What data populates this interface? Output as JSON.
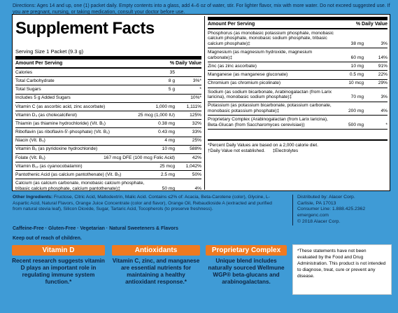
{
  "directions": "Directions: Ages 14 and up, one (1) packet daily. Empty contents into a glass, add 4–6 oz of water, stir. For lighter flavor, mix with more water. Do not exceed suggested use. If you are pregnant, nursing, or taking medication, consult your doctor before use.",
  "supplement_facts": {
    "title": "Supplement Facts",
    "serving_size": "Serving Size 1 Packet (9.3 g)",
    "left": {
      "header": [
        "Amount Per Serving",
        "% Daily Value"
      ],
      "rows": [
        [
          "Calories",
          "35",
          ""
        ],
        [
          "Total Carbohydrate",
          "8 g",
          "3%*"
        ],
        [
          "Total Sugars",
          "5 g",
          "*"
        ],
        [
          "Includes 5 g Added Sugars",
          "",
          "10%*"
        ],
        [
          "Vitamin C (as ascorbic acid, zinc ascorbate)",
          "1,000 mg",
          "1,111%"
        ],
        [
          "Vitamin D₃ (as cholecalciferol)",
          "25 mcg (1,000 IU)",
          "125%"
        ],
        [
          "Thiamin (as thiamine hydrochloride) (Vit. B₁)",
          "0.38 mg",
          "32%"
        ],
        [
          "Riboflavin (as riboflavin-5'-phosphate) (Vit. B₂)",
          "0.43 mg",
          "33%"
        ],
        [
          "Niacin (Vit. B₃)",
          "4 mg",
          "25%"
        ],
        [
          "Vitamin B₆ (as pyridoxine hydrochloride)",
          "10 mg",
          "588%"
        ],
        [
          "Folate (Vit. B₉)",
          "167 mcg DFE (100 mcg Folic Acid)",
          "42%"
        ],
        [
          "Vitamin B₁₂ (as cyanocobalamin)",
          "25 mcg",
          "1,042%"
        ],
        [
          "Pantothenic Acid (as calcium pantothenate) (Vit. B₅)",
          "2.5 mg",
          "50%"
        ],
        [
          "Calcium (as calcium carbonate, monobasic calcium phosphate, tribasic calcium phosphate, calcium pantothenate)‡",
          "50 mg",
          "4%"
        ]
      ]
    },
    "right": {
      "header": [
        "Amount Per Serving",
        "% Daily Value"
      ],
      "rows": [
        [
          "Phosphorus (as monobasic potassium phosphate, monobasic calcium phosphate, monobasic sodium phosphate, tribasic calcium phosphate)‡",
          "38 mg",
          "3%"
        ],
        [
          "Magnesium (as magnesium hydroxide, magnesium carbonate)‡",
          "60 mg",
          "14%"
        ],
        [
          "Zinc (as zinc ascorbate)",
          "10 mg",
          "91%"
        ],
        [
          "Manganese (as manganese gluconate)",
          "0.5 mg",
          "22%"
        ],
        [
          "Chromium (as chromium picolinate)",
          "10 mcg",
          "29%"
        ],
        [
          "Sodium (as sodium bicarbonate, Arabinogalactan (from Larix laricina), monobasic sodium phosphate)‡",
          "70 mg",
          "3%"
        ],
        [
          "Potassium (as potassium bicarbonate, potassium carbonate, monobasic potassium phosphate)‡",
          "200 mg",
          "4%"
        ],
        [
          "Proprietary Complex (Arabinogalactan (from Larix laricina), Beta-Glucan (from Saccharomyces cerevisiae))",
          "500 mg",
          "*"
        ]
      ],
      "footnotes": [
        "*Percent Daily Values are based on a 2,000 calorie diet.",
        "†Daily Value not established.      ‡Electrolytes"
      ]
    }
  },
  "other_ingredients": {
    "label": "Other Ingredients:",
    "text": "Fructose, Citric Acid, Maltodextrin, Malic Acid. Contains ≤2% of: Acacia, Beta-Carotene (color), Glycine, L-Aspartic Acid, Natural Flavors, Orange Juice Concentrate (color and flavor), Orange Oil, Rebaudioside A (extracted and purified from natural stevia leaf), Silicon Dioxide, Sugar, Tartaric Acid, Tocopherols (to preserve freshness).",
    "claims": "Caffeine-Free · Gluten-Free · Vegetarian · Natural Sweeteners & Flavors",
    "warning": "Keep out of reach of children."
  },
  "distributor": [
    "Distributed by: Alacer Corp.",
    "Carlisle, PA 17013",
    "Consumer Line: 1.888.425.2362",
    "emergenc.com",
    "© 2018 Alacer Corp."
  ],
  "features": [
    {
      "title": "Vitamin D",
      "text": "Recent research suggests vitamin D plays an important role in regulating immune system function.*"
    },
    {
      "title": "Antioxidants",
      "text": "Vitamin C, zinc, and manganese are essential nutrients for maintaining a healthy antioxidant response.*"
    },
    {
      "title": "Proprietary Complex",
      "text": "Unique blend includes naturally sourced Wellmune WGP® beta-glucans and arabinogalactans."
    }
  ],
  "disclaimer": "*These statements have not been evaluated by the Food and Drug Administration. This product is not intended to diagnose, treat, cure or prevent any disease."
}
